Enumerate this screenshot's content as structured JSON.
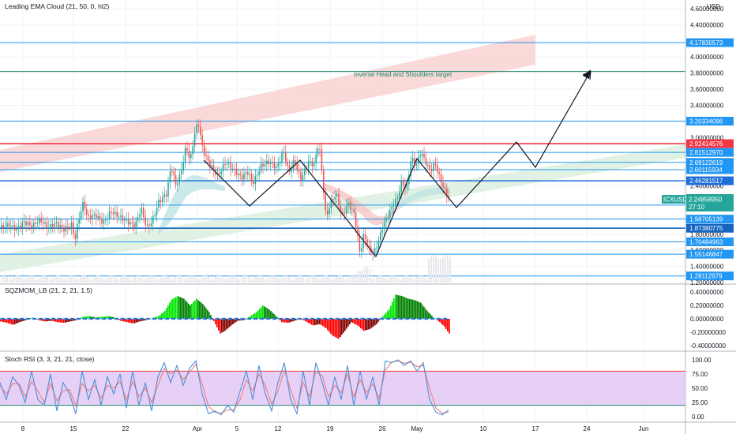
{
  "chart_data": [
    {
      "type": "candlestick",
      "indicator_label": "Leading EMA Cloud (21, 50, 0, hl2)",
      "currency": "USD",
      "symbol": "ICXUSD",
      "last_price": "2.24858950",
      "countdown": "27:10",
      "y_ticks": [
        "4.60000000",
        "4.40000000",
        "4.20000000",
        "4.00000000",
        "3.80000000",
        "3.60000000",
        "3.40000000",
        "3.20000000",
        "3.00000000",
        "2.80000000",
        "2.60000000",
        "2.40000000",
        "2.20000000",
        "2.00000000",
        "1.80000000",
        "1.60000000",
        "1.40000000",
        "1.20000000"
      ],
      "x_ticks": [
        "8",
        "15",
        "22",
        "Apr",
        "5",
        "12",
        "19",
        "26",
        "May",
        "10",
        "17",
        "24",
        "Jun"
      ],
      "annotation": "Inverse Head and Shoulders target",
      "levels": [
        {
          "value": "4.17830573",
          "color": "#2196f3"
        },
        {
          "value": "3.82000000",
          "color": "#1e8a6e"
        },
        {
          "value": "3.20334096",
          "color": "#2196f3"
        },
        {
          "value": "2.92414576",
          "color": "#f23645"
        },
        {
          "value": "2.81512970",
          "color": "#2196f3"
        },
        {
          "value": "2.69122619",
          "color": "#2196f3"
        },
        {
          "value": "2.60115934",
          "color": "#2196f3"
        },
        {
          "value": "2.46281517",
          "color": "#1e6fd9"
        },
        {
          "value": "2.16102090",
          "color": "#2196f3"
        },
        {
          "value": "1.98705139",
          "color": "#2196f3"
        },
        {
          "value": "1.87380775",
          "color": "#1565c0"
        },
        {
          "value": "1.70484963",
          "color": "#2196f3"
        },
        {
          "value": "1.55146847",
          "color": "#2196f3"
        },
        {
          "value": "1.28112979",
          "color": "#2196f3"
        }
      ],
      "price_path": [
        [
          0,
          1.88
        ],
        [
          10,
          1.92
        ],
        [
          20,
          1.86
        ],
        [
          30,
          1.95
        ],
        [
          40,
          1.9
        ],
        [
          50,
          1.98
        ],
        [
          60,
          1.88
        ],
        [
          70,
          1.94
        ],
        [
          80,
          1.86
        ],
        [
          90,
          1.92
        ],
        [
          94,
          1.72
        ],
        [
          98,
          1.96
        ],
        [
          105,
          2.2
        ],
        [
          110,
          2.0
        ],
        [
          120,
          2.04
        ],
        [
          130,
          1.94
        ],
        [
          140,
          2.08
        ],
        [
          150,
          2.02
        ],
        [
          160,
          1.96
        ],
        [
          170,
          1.9
        ],
        [
          178,
          2.12
        ],
        [
          185,
          1.88
        ],
        [
          192,
          1.96
        ],
        [
          200,
          2.2
        ],
        [
          210,
          2.3
        ],
        [
          216,
          2.65
        ],
        [
          222,
          2.4
        ],
        [
          228,
          2.55
        ],
        [
          235,
          2.9
        ],
        [
          240,
          2.7
        ],
        [
          245,
          3.02
        ],
        [
          250,
          3.2
        ],
        [
          255,
          2.9
        ],
        [
          260,
          2.75
        ],
        [
          268,
          2.62
        ],
        [
          275,
          2.52
        ],
        [
          285,
          2.7
        ],
        [
          295,
          2.6
        ],
        [
          305,
          2.5
        ],
        [
          312,
          2.58
        ],
        [
          320,
          2.44
        ],
        [
          330,
          2.65
        ],
        [
          340,
          2.7
        ],
        [
          350,
          2.62
        ],
        [
          358,
          2.84
        ],
        [
          365,
          2.56
        ],
        [
          372,
          2.72
        ],
        [
          380,
          2.48
        ],
        [
          390,
          2.7
        ],
        [
          397,
          2.66
        ],
        [
          403,
          2.95
        ],
        [
          408,
          2.45
        ],
        [
          412,
          2.0
        ],
        [
          418,
          2.2
        ],
        [
          425,
          2.3
        ],
        [
          432,
          2.02
        ],
        [
          440,
          2.18
        ],
        [
          448,
          2.05
        ],
        [
          455,
          1.56
        ],
        [
          460,
          1.8
        ],
        [
          466,
          1.62
        ],
        [
          472,
          1.56
        ],
        [
          478,
          1.7
        ],
        [
          484,
          1.9
        ],
        [
          490,
          2.02
        ],
        [
          496,
          2.15
        ],
        [
          502,
          2.24
        ],
        [
          508,
          2.45
        ],
        [
          514,
          2.35
        ],
        [
          520,
          2.75
        ],
        [
          526,
          2.65
        ],
        [
          532,
          2.82
        ],
        [
          538,
          2.7
        ],
        [
          544,
          2.58
        ],
        [
          550,
          2.68
        ],
        [
          556,
          2.5
        ],
        [
          562,
          2.35
        ],
        [
          568,
          2.24
        ]
      ]
    },
    {
      "type": "histogram",
      "indicator_label": "SQZMOM_LB (21, 2, 21, 1.5)",
      "y_ticks": [
        "0.40000000",
        "0.20000000",
        "0.00000000",
        "-0.20000000",
        "-0.40000000"
      ],
      "points": [
        [
          0,
          -0.04
        ],
        [
          8,
          -0.06
        ],
        [
          16,
          -0.09
        ],
        [
          24,
          -0.05
        ],
        [
          32,
          -0.02
        ],
        [
          40,
          0.02
        ],
        [
          48,
          -0.02
        ],
        [
          56,
          -0.04
        ],
        [
          64,
          -0.03
        ],
        [
          72,
          -0.05
        ],
        [
          80,
          -0.06
        ],
        [
          88,
          -0.04
        ],
        [
          96,
          -0.02
        ],
        [
          104,
          0.03
        ],
        [
          112,
          0.04
        ],
        [
          120,
          0.02
        ],
        [
          128,
          0.03
        ],
        [
          136,
          0.04
        ],
        [
          144,
          0.02
        ],
        [
          152,
          -0.03
        ],
        [
          160,
          -0.05
        ],
        [
          168,
          -0.07
        ],
        [
          176,
          -0.04
        ],
        [
          184,
          -0.02
        ],
        [
          192,
          0.01
        ],
        [
          200,
          0.04
        ],
        [
          208,
          0.12
        ],
        [
          216,
          0.28
        ],
        [
          224,
          0.34
        ],
        [
          232,
          0.3
        ],
        [
          240,
          0.2
        ],
        [
          248,
          0.3
        ],
        [
          256,
          0.22
        ],
        [
          264,
          0.1
        ],
        [
          272,
          -0.08
        ],
        [
          278,
          -0.22
        ],
        [
          284,
          -0.18
        ],
        [
          292,
          -0.1
        ],
        [
          300,
          -0.03
        ],
        [
          308,
          -0.02
        ],
        [
          316,
          0.04
        ],
        [
          324,
          0.1
        ],
        [
          332,
          0.2
        ],
        [
          340,
          0.14
        ],
        [
          348,
          0.05
        ],
        [
          356,
          -0.05
        ],
        [
          364,
          -0.06
        ],
        [
          372,
          -0.03
        ],
        [
          380,
          0.0
        ],
        [
          388,
          -0.05
        ],
        [
          396,
          -0.1
        ],
        [
          404,
          -0.08
        ],
        [
          412,
          -0.14
        ],
        [
          420,
          -0.25
        ],
        [
          428,
          -0.3
        ],
        [
          436,
          -0.18
        ],
        [
          444,
          -0.05
        ],
        [
          452,
          -0.1
        ],
        [
          460,
          -0.18
        ],
        [
          468,
          -0.15
        ],
        [
          476,
          -0.08
        ],
        [
          484,
          0.04
        ],
        [
          492,
          0.14
        ],
        [
          500,
          0.36
        ],
        [
          508,
          0.34
        ],
        [
          516,
          0.3
        ],
        [
          524,
          0.28
        ],
        [
          532,
          0.24
        ],
        [
          540,
          0.12
        ],
        [
          548,
          0.02
        ],
        [
          556,
          -0.05
        ],
        [
          562,
          -0.12
        ],
        [
          568,
          -0.22
        ]
      ]
    },
    {
      "type": "line",
      "indicator_label": "Stoch RSI (3, 3, 21, 21, close)",
      "y_ticks": [
        "100.00",
        "75.00",
        "50.00",
        "25.00",
        "0.00"
      ],
      "band": [
        20,
        80
      ],
      "k": [
        [
          0,
          60
        ],
        [
          8,
          30
        ],
        [
          16,
          70
        ],
        [
          24,
          55
        ],
        [
          32,
          25
        ],
        [
          40,
          80
        ],
        [
          48,
          30
        ],
        [
          56,
          20
        ],
        [
          64,
          75
        ],
        [
          72,
          10
        ],
        [
          80,
          60
        ],
        [
          88,
          40
        ],
        [
          96,
          5
        ],
        [
          104,
          80
        ],
        [
          112,
          30
        ],
        [
          120,
          65
        ],
        [
          128,
          20
        ],
        [
          136,
          70
        ],
        [
          144,
          40
        ],
        [
          152,
          75
        ],
        [
          160,
          15
        ],
        [
          168,
          80
        ],
        [
          176,
          20
        ],
        [
          184,
          60
        ],
        [
          192,
          10
        ],
        [
          200,
          70
        ],
        [
          208,
          95
        ],
        [
          216,
          60
        ],
        [
          224,
          90
        ],
        [
          232,
          55
        ],
        [
          240,
          85
        ],
        [
          248,
          98
        ],
        [
          256,
          40
        ],
        [
          264,
          5
        ],
        [
          272,
          10
        ],
        [
          280,
          3
        ],
        [
          288,
          20
        ],
        [
          296,
          8
        ],
        [
          304,
          45
        ],
        [
          312,
          80
        ],
        [
          320,
          30
        ],
        [
          328,
          90
        ],
        [
          336,
          40
        ],
        [
          344,
          10
        ],
        [
          352,
          60
        ],
        [
          360,
          95
        ],
        [
          368,
          30
        ],
        [
          376,
          5
        ],
        [
          384,
          80
        ],
        [
          392,
          20
        ],
        [
          400,
          95
        ],
        [
          408,
          60
        ],
        [
          416,
          20
        ],
        [
          424,
          70
        ],
        [
          432,
          30
        ],
        [
          440,
          90
        ],
        [
          448,
          20
        ],
        [
          456,
          80
        ],
        [
          464,
          30
        ],
        [
          472,
          70
        ],
        [
          480,
          20
        ],
        [
          488,
          98
        ],
        [
          496,
          95
        ],
        [
          504,
          100
        ],
        [
          512,
          90
        ],
        [
          520,
          98
        ],
        [
          528,
          80
        ],
        [
          536,
          95
        ],
        [
          544,
          30
        ],
        [
          552,
          8
        ],
        [
          560,
          3
        ],
        [
          568,
          12
        ]
      ],
      "d": [
        [
          0,
          55
        ],
        [
          8,
          40
        ],
        [
          16,
          58
        ],
        [
          24,
          58
        ],
        [
          32,
          35
        ],
        [
          40,
          62
        ],
        [
          48,
          45
        ],
        [
          56,
          25
        ],
        [
          64,
          58
        ],
        [
          72,
          28
        ],
        [
          80,
          45
        ],
        [
          88,
          48
        ],
        [
          96,
          18
        ],
        [
          104,
          58
        ],
        [
          112,
          45
        ],
        [
          120,
          55
        ],
        [
          128,
          32
        ],
        [
          136,
          55
        ],
        [
          144,
          50
        ],
        [
          152,
          62
        ],
        [
          160,
          30
        ],
        [
          168,
          62
        ],
        [
          176,
          35
        ],
        [
          184,
          50
        ],
        [
          192,
          25
        ],
        [
          200,
          55
        ],
        [
          208,
          85
        ],
        [
          216,
          75
        ],
        [
          224,
          82
        ],
        [
          232,
          65
        ],
        [
          240,
          78
        ],
        [
          248,
          92
        ],
        [
          256,
          58
        ],
        [
          264,
          18
        ],
        [
          272,
          8
        ],
        [
          280,
          6
        ],
        [
          288,
          12
        ],
        [
          296,
          12
        ],
        [
          304,
          30
        ],
        [
          312,
          65
        ],
        [
          320,
          45
        ],
        [
          328,
          75
        ],
        [
          336,
          55
        ],
        [
          344,
          22
        ],
        [
          352,
          45
        ],
        [
          360,
          82
        ],
        [
          368,
          48
        ],
        [
          376,
          15
        ],
        [
          384,
          60
        ],
        [
          392,
          35
        ],
        [
          400,
          80
        ],
        [
          408,
          72
        ],
        [
          416,
          35
        ],
        [
          424,
          55
        ],
        [
          432,
          42
        ],
        [
          440,
          75
        ],
        [
          448,
          35
        ],
        [
          456,
          65
        ],
        [
          464,
          42
        ],
        [
          472,
          58
        ],
        [
          480,
          32
        ],
        [
          488,
          82
        ],
        [
          496,
          96
        ],
        [
          504,
          98
        ],
        [
          512,
          94
        ],
        [
          520,
          96
        ],
        [
          528,
          88
        ],
        [
          536,
          90
        ],
        [
          544,
          50
        ],
        [
          552,
          15
        ],
        [
          560,
          6
        ],
        [
          568,
          8
        ]
      ]
    }
  ]
}
